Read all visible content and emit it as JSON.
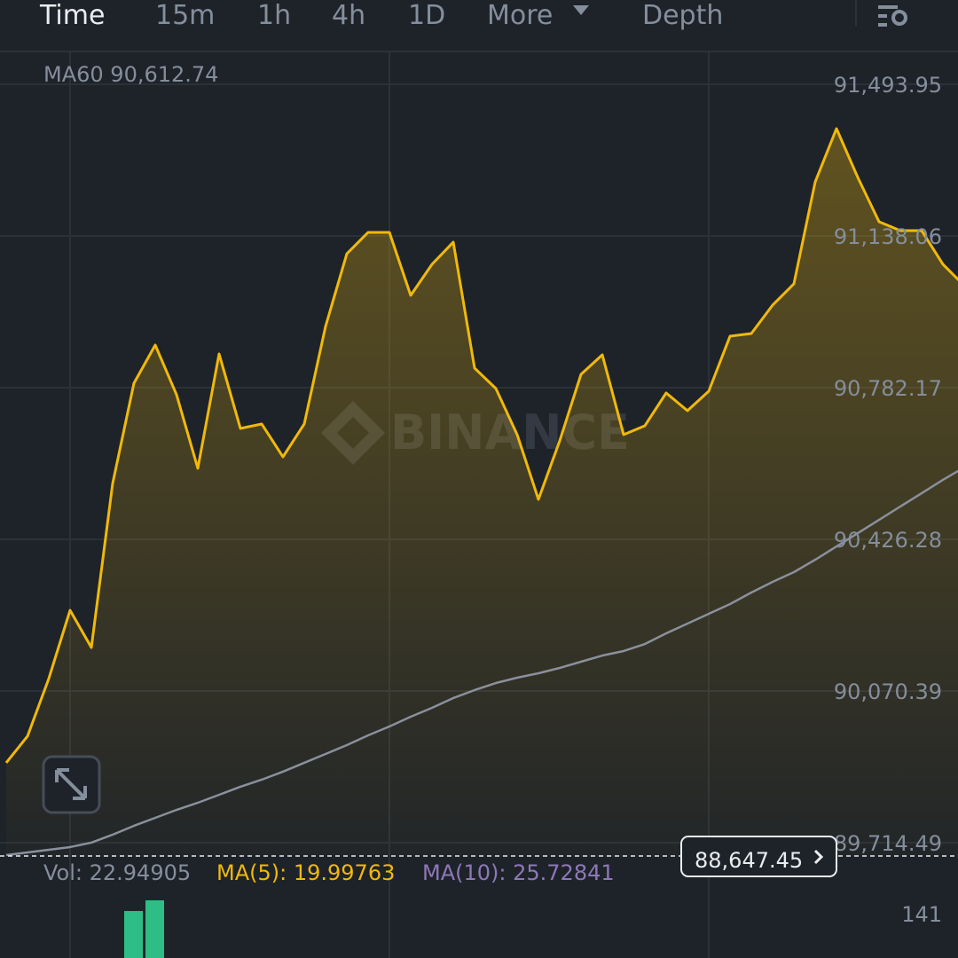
{
  "toolbar": {
    "tabs": [
      "Time",
      "15m",
      "1h",
      "4h",
      "1D",
      "More",
      "Depth"
    ]
  },
  "ma60_label": "MA60 90,612.74",
  "watermark": "BINANCE",
  "current_price_label": "88,647.45",
  "chart_data": {
    "type": "line",
    "series": [
      {
        "color": "#f0b90b",
        "fill": true,
        "values": [
          89901.9,
          89964.3,
          90099.6,
          90259.8,
          90172.4,
          90557.4,
          90792.6,
          90882.1,
          90765.6,
          90592.8,
          90861.3,
          90686.5,
          90696.9,
          90619.8,
          90696.9,
          90925.8,
          91096.4,
          91146.4,
          91146.4,
          90998.6,
          91071.5,
          91123.5,
          90828.0,
          90780.1,
          90671.9,
          90520.0,
          90657.4,
          90813.4,
          90859.2,
          90671.9,
          90692.7,
          90769.7,
          90728.1,
          90773.9,
          90902.9,
          90909.1,
          90975.8,
          91025.7,
          91265.0,
          91389.9,
          91275.4,
          91171.4,
          91150.6,
          91150.6,
          91071.5,
          91021.6
        ]
      },
      {
        "color": "#8a909c",
        "fill": false,
        "values": [
          89685.4,
          89691.7,
          89697.9,
          89704.2,
          89714.6,
          89733.3,
          89754.1,
          89772.8,
          89791.5,
          89808.2,
          89826.9,
          89845.7,
          89862.3,
          89881.1,
          89901.9,
          89922.7,
          89943.5,
          89966.3,
          89987.1,
          90010.0,
          90030.9,
          90053.8,
          90072.5,
          90089.1,
          90101.6,
          90112.0,
          90124.5,
          90139.1,
          90153.6,
          90164.1,
          90180.7,
          90205.7,
          90228.6,
          90251.5,
          90274.3,
          90301.4,
          90326.4,
          90349.3,
          90378.4,
          90409.6,
          90440.8,
          90472.0,
          90503.3,
          90534.5,
          90565.8,
          90594.9
        ]
      }
    ],
    "ylim": [
      89683.3,
      91566.8
    ],
    "yticks": [
      {
        "value": 91493.95,
        "label": "91,493.95"
      },
      {
        "value": 91138.06,
        "label": "91,138.06"
      },
      {
        "value": 90782.17,
        "label": "90,782.17"
      },
      {
        "value": 90426.28,
        "label": "90,426.28"
      },
      {
        "value": 90070.39,
        "label": "90,070.39"
      },
      {
        "value": 89714.49,
        "label": "89,714.49"
      }
    ],
    "grid": true
  },
  "volume": {
    "type": "bar",
    "color": "#2ebd85",
    "values": [
      null,
      null,
      null,
      null,
      null,
      null,
      145.2,
      162.2
    ],
    "ylim": [
      0,
      183.3
    ],
    "yticks": [
      141
    ],
    "legend": [
      {
        "text": "Vol: 22.94905",
        "color": "#848e9c"
      },
      {
        "text": "MA(5): 19.99763",
        "color": "#f0b90b"
      },
      {
        "text": "MA(10): 25.72841",
        "color": "#8e78b8"
      }
    ]
  }
}
